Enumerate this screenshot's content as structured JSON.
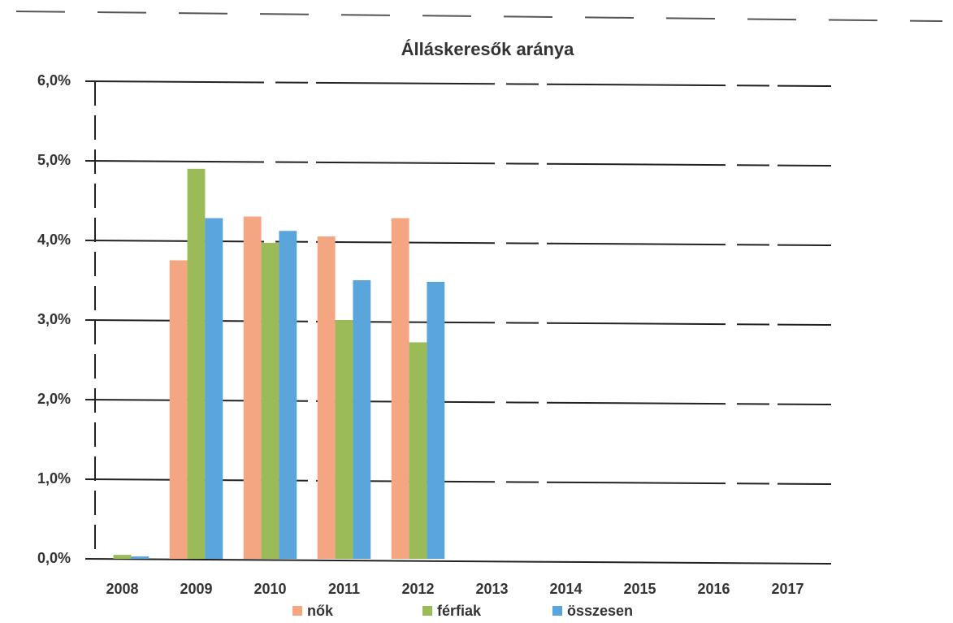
{
  "chart_data": {
    "type": "bar",
    "title": "Álláskeresők aránya",
    "categories": [
      "2008",
      "2009",
      "2010",
      "2011",
      "2012",
      "2013",
      "2014",
      "2015",
      "2016",
      "2017"
    ],
    "series": [
      {
        "name": "nők",
        "color": "#f4a582",
        "values": [
          0,
          3.75,
          4.3,
          4.05,
          4.28,
          null,
          null,
          null,
          null,
          null
        ]
      },
      {
        "name": "férfiak",
        "color": "#9bbb59",
        "values": [
          0.05,
          4.9,
          3.97,
          3.0,
          2.72,
          null,
          null,
          null,
          null,
          null
        ]
      },
      {
        "name": "összesen",
        "color": "#5aa5dc",
        "values": [
          0.03,
          4.28,
          4.12,
          3.5,
          3.48,
          null,
          null,
          null,
          null,
          null
        ]
      }
    ],
    "ylim": [
      0,
      6
    ],
    "yticks": [
      {
        "value": 0,
        "label": "0,0%"
      },
      {
        "value": 1,
        "label": "1,0%"
      },
      {
        "value": 2,
        "label": "2,0%"
      },
      {
        "value": 3,
        "label": "3,0%"
      },
      {
        "value": 4,
        "label": "4,0%"
      },
      {
        "value": 5,
        "label": "5,0%"
      },
      {
        "value": 6,
        "label": "6,0%"
      }
    ],
    "grid": true,
    "legend": "bottom"
  }
}
